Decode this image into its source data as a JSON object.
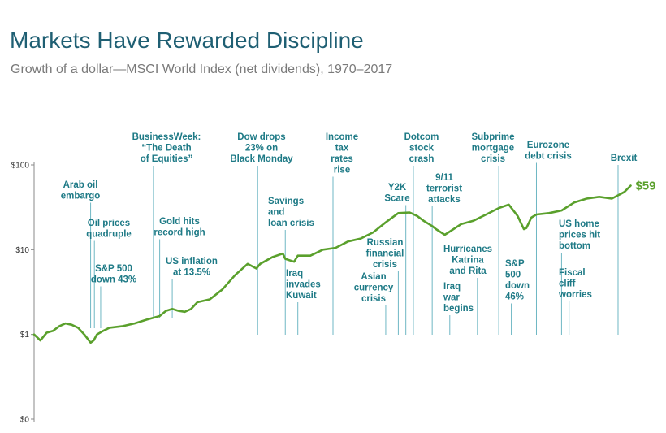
{
  "title": "Markets Have Rewarded Discipline",
  "subtitle": "Growth of a dollar—MSCI World Index (net dividends), 1970–2017",
  "colors": {
    "title": "#1f5f73",
    "line": "#5aa02c",
    "annotation": "#1e7a86",
    "axis": "#888888"
  },
  "chart_data": {
    "type": "line",
    "title": "Markets Have Rewarded Discipline",
    "subtitle": "Growth of a dollar—MSCI World Index (net dividends), 1970–2017",
    "xlabel": "",
    "ylabel": "",
    "yscale": "log",
    "ylim": [
      0.1,
      100
    ],
    "xlim": [
      1970,
      2017.6
    ],
    "yticks": [
      {
        "value": 100,
        "label": "$100"
      },
      {
        "value": 10,
        "label": "$10"
      },
      {
        "value": 1,
        "label": "$1"
      },
      {
        "value": 0.1,
        "label": "$0"
      }
    ],
    "grid": false,
    "legend": "none",
    "series": [
      {
        "x": [
          1970.0,
          1970.5,
          1971.0,
          1971.5,
          1972.0,
          1972.5,
          1973.0,
          1973.5,
          1974.0,
          1974.5,
          1974.75,
          1975.0,
          1975.5,
          1976.0,
          1977.0,
          1978.0,
          1979.0,
          1980.0,
          1980.5,
          1981.0,
          1981.5,
          1982.0,
          1982.5,
          1983.0,
          1984.0,
          1985.0,
          1986.0,
          1987.0,
          1987.7,
          1988.0,
          1989.0,
          1989.8,
          1990.0,
          1990.7,
          1991.0,
          1992.0,
          1993.0,
          1994.0,
          1995.0,
          1996.0,
          1997.0,
          1998.0,
          1999.0,
          1999.9,
          2000.5,
          2001.0,
          2001.7,
          2002.0,
          2002.7,
          2003.0,
          2004.0,
          2005.0,
          2006.0,
          2007.0,
          2007.8,
          2008.5,
          2009.0,
          2009.2,
          2009.6,
          2010.0,
          2011.0,
          2012.0,
          2013.0,
          2014.0,
          2015.0,
          2016.0,
          2017.0,
          2017.5
        ],
        "y": [
          1.0,
          0.85,
          1.05,
          1.1,
          1.25,
          1.35,
          1.3,
          1.2,
          1.0,
          0.8,
          0.85,
          1.0,
          1.1,
          1.2,
          1.25,
          1.35,
          1.5,
          1.65,
          1.9,
          2.0,
          1.9,
          1.85,
          2.0,
          2.4,
          2.6,
          3.4,
          5.0,
          6.8,
          6.0,
          6.8,
          8.2,
          9.0,
          7.8,
          7.2,
          8.5,
          8.5,
          10.0,
          10.5,
          12.5,
          13.5,
          16.0,
          21.0,
          27.0,
          27.5,
          25.0,
          22.0,
          19.0,
          17.5,
          15.0,
          16.0,
          20.0,
          22.0,
          26.0,
          31.0,
          34.0,
          25.0,
          17.5,
          18.0,
          24.0,
          26.0,
          27.0,
          29.0,
          36.0,
          40.0,
          42.0,
          40.0,
          48.0,
          57.0
        ]
      }
    ],
    "end_label": "$59",
    "annotations": [
      {
        "x": 1974.5,
        "label": "Arab oil embargo",
        "lines": [
          "Arab oil",
          "embargo"
        ]
      },
      {
        "x": 1974.8,
        "label": "Oil prices quadruple",
        "lines": [
          "Oil prices",
          "quadruple"
        ]
      },
      {
        "x": 1975.3,
        "label": "S&P 500 down 43%",
        "lines": [
          "S&P 500",
          "down 43%"
        ]
      },
      {
        "x": 1979.5,
        "label": "BusinessWeek: “The Death of Equities”",
        "lines": [
          "BusinessWeek:",
          "“The Death",
          "of Equities”"
        ]
      },
      {
        "x": 1980.0,
        "label": "Gold hits record high",
        "lines": [
          "Gold hits",
          "record high"
        ]
      },
      {
        "x": 1981.0,
        "label": "US inflation at 13.5%",
        "lines": [
          "US inflation",
          "at 13.5%"
        ]
      },
      {
        "x": 1987.8,
        "label": "Dow drops 23% on Black Monday",
        "lines": [
          "Dow drops",
          "23% on",
          "Black Monday"
        ]
      },
      {
        "x": 1990.0,
        "label": "Savings and loan crisis",
        "lines": [
          "Savings",
          "and",
          "loan crisis"
        ]
      },
      {
        "x": 1991.0,
        "label": "Iraq invades Kuwait",
        "lines": [
          "Iraq",
          "invades",
          "Kuwait"
        ]
      },
      {
        "x": 1993.8,
        "label": "Income tax rates rise",
        "lines": [
          "Income",
          "tax",
          "rates",
          "rise"
        ]
      },
      {
        "x": 1998.0,
        "label": "Asian currency crisis",
        "lines": [
          "Asian",
          "currency",
          "crisis"
        ]
      },
      {
        "x": 1999.0,
        "label": "Russian financial crisis",
        "lines": [
          "Russian",
          "financial",
          "crisis"
        ]
      },
      {
        "x": 1999.6,
        "label": "Y2K Scare",
        "lines": [
          "Y2K",
          "Scare"
        ]
      },
      {
        "x": 2000.2,
        "label": "Dotcom stock crash",
        "lines": [
          "Dotcom",
          "stock",
          "crash"
        ]
      },
      {
        "x": 2001.7,
        "label": "9/11 terrorist attacks",
        "lines": [
          "9/11",
          "terrorist",
          "attacks"
        ]
      },
      {
        "x": 2003.1,
        "label": "Iraq war begins",
        "lines": [
          "Iraq",
          "war",
          "begins"
        ]
      },
      {
        "x": 2005.3,
        "label": "Hurricanes Katrina and Rita",
        "lines": [
          "Hurricanes",
          "Katrina",
          "and Rita"
        ]
      },
      {
        "x": 2007.0,
        "label": "Subprime mortgage crisis",
        "lines": [
          "Subprime",
          "mortgage",
          "crisis"
        ]
      },
      {
        "x": 2008.0,
        "label": "S&P 500 down 46%",
        "lines": [
          "S&P",
          "500",
          "down",
          "46%"
        ]
      },
      {
        "x": 2010.0,
        "label": "Eurozone debt crisis",
        "lines": [
          "Eurozone",
          "debt crisis"
        ]
      },
      {
        "x": 2012.0,
        "label": "US home prices hit bottom",
        "lines": [
          "US home",
          "prices hit",
          "bottom"
        ]
      },
      {
        "x": 2012.6,
        "label": "Fiscal cliff worries",
        "lines": [
          "Fiscal",
          "cliff",
          "worries"
        ]
      },
      {
        "x": 2016.5,
        "label": "Brexit",
        "lines": [
          "Brexit"
        ]
      }
    ]
  }
}
